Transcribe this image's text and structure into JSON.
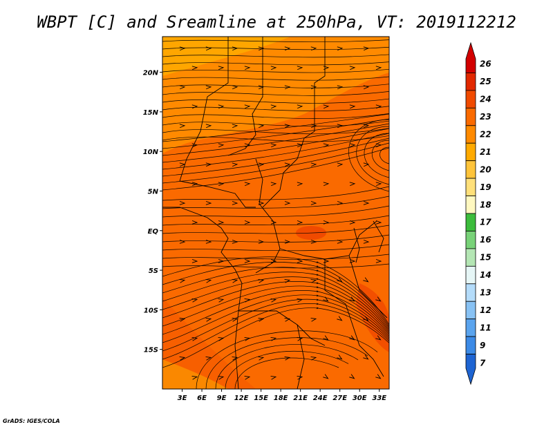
{
  "chart_data": {
    "type": "heatmap",
    "title": "WBPT [C] and Sreamline at 250hPa, VT: 2019112212",
    "variable": "Wet-bulb potential temperature (C) with streamlines",
    "level": "250hPa",
    "valid_time": "2019112212",
    "x_axis": {
      "ticks": [
        "3E",
        "6E",
        "9E",
        "12E",
        "15E",
        "18E",
        "21E",
        "24E",
        "27E",
        "30E",
        "33E"
      ],
      "tick_values": [
        3,
        6,
        9,
        12,
        15,
        18,
        21,
        24,
        27,
        30,
        33
      ],
      "range": [
        0,
        34.5
      ]
    },
    "y_axis": {
      "ticks": [
        "20N",
        "15N",
        "10N",
        "5N",
        "EQ",
        "5S",
        "10S",
        "15S"
      ],
      "tick_values": [
        20,
        15,
        10,
        5,
        0,
        -5,
        -10,
        -15
      ],
      "range": [
        -20,
        24.5
      ]
    },
    "colorbar": {
      "labels": [
        "26",
        "25",
        "24",
        "23",
        "22",
        "21",
        "20",
        "19",
        "18",
        "17",
        "16",
        "15",
        "14",
        "13",
        "12",
        "11",
        "9",
        "7"
      ],
      "colors": [
        "#d20000",
        "#e22800",
        "#f04a00",
        "#fa6a00",
        "#ff8a00",
        "#ffaa00",
        "#ffc43a",
        "#ffe07a",
        "#fff8c0",
        "#3cbc3c",
        "#78d278",
        "#b4e6b4",
        "#e6f6f6",
        "#b4dcfa",
        "#88c2f4",
        "#5aa4ee",
        "#3c8ae6",
        "#1e64d2"
      ],
      "extend": "both"
    },
    "field_description": {
      "background_value_c": 23,
      "north_band_value_c": 22,
      "high_patches_c": 24,
      "southwest_corner_c": 21
    },
    "streamline_flow": "westerly to south-westerly flow with cyclonic curvature around 10N 33E and anticyclonic curvature over southern Africa",
    "credit": "GrADS: IGES/COLA"
  }
}
